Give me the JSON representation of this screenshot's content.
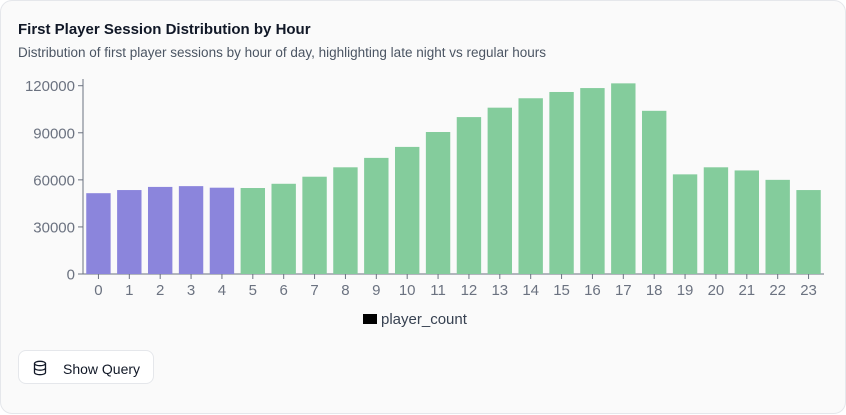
{
  "card": {
    "title": "First Player Session Distribution by Hour",
    "subtitle": "Distribution of first player sessions by hour of day, highlighting late night vs regular hours"
  },
  "query_button": {
    "label": "Show Query",
    "icon": "database-icon"
  },
  "colors": {
    "late_night": "#8b85dc",
    "regular": "#84cc9c",
    "axis": "#6b7280",
    "legend_swatch": "#000000"
  },
  "chart_data": {
    "type": "bar",
    "categories": [
      "0",
      "1",
      "2",
      "3",
      "4",
      "5",
      "6",
      "7",
      "8",
      "9",
      "10",
      "11",
      "12",
      "13",
      "14",
      "15",
      "16",
      "17",
      "18",
      "19",
      "20",
      "21",
      "22",
      "23"
    ],
    "series": [
      {
        "name": "player_count",
        "values": [
          51500,
          53500,
          55500,
          56000,
          55000,
          54800,
          57500,
          62000,
          68000,
          74000,
          81000,
          90500,
          100000,
          106000,
          112000,
          116000,
          118500,
          121500,
          104000,
          63500,
          68000,
          66000,
          60000,
          53500
        ]
      }
    ],
    "highlight_late_night_hours": [
      "0",
      "1",
      "2",
      "3",
      "4"
    ],
    "yticks": [
      0,
      30000,
      60000,
      90000,
      120000
    ],
    "ylim": [
      0,
      123000
    ],
    "legend": {
      "position": "bottom",
      "entries": [
        "player_count"
      ]
    },
    "grid": false
  }
}
